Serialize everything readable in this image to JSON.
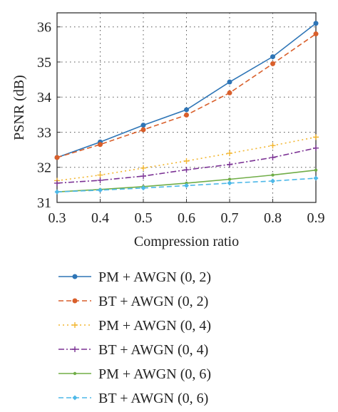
{
  "chart_data": {
    "type": "line",
    "xlabel": "Compression ratio",
    "ylabel": "PSNR (dB)",
    "xlim": [
      0.3,
      0.9
    ],
    "ylim": [
      31,
      36.4
    ],
    "xticks": [
      "0.3",
      "0.4",
      "0.5",
      "0.6",
      "0.7",
      "0.8",
      "0.9"
    ],
    "yticks": [
      "31",
      "32",
      "33",
      "34",
      "35",
      "36"
    ],
    "grid": true,
    "legend_position": "below",
    "x": [
      0.3,
      0.4,
      0.5,
      0.6,
      0.7,
      0.8,
      0.9
    ],
    "series": [
      {
        "name": "PM + AWGN (0, 2)",
        "values": [
          32.28,
          32.72,
          33.2,
          33.64,
          34.43,
          35.15,
          36.1
        ],
        "color": "#2e75b6",
        "dash": "solid",
        "marker": "circle"
      },
      {
        "name": "BT + AWGN (0, 2)",
        "values": [
          32.28,
          32.65,
          33.07,
          33.49,
          34.12,
          34.95,
          35.8
        ],
        "color": "#d95f2b",
        "dash": "dashed",
        "marker": "circle"
      },
      {
        "name": "PM + AWGN (0, 4)",
        "values": [
          31.62,
          31.78,
          31.98,
          32.18,
          32.4,
          32.62,
          32.86
        ],
        "color": "#f2b630",
        "dash": "dotted",
        "marker": "plus"
      },
      {
        "name": "BT + AWGN (0, 4)",
        "values": [
          31.55,
          31.63,
          31.75,
          31.93,
          32.08,
          32.28,
          32.55
        ],
        "color": "#7b3294",
        "dash": "dashdot",
        "marker": "plus"
      },
      {
        "name": "PM + AWGN (0, 6)",
        "values": [
          31.3,
          31.37,
          31.45,
          31.55,
          31.66,
          31.78,
          31.92
        ],
        "color": "#70ad47",
        "dash": "solid",
        "marker": "dot"
      },
      {
        "name": "BT + AWGN (0, 6)",
        "values": [
          31.3,
          31.35,
          31.41,
          31.48,
          31.55,
          31.61,
          31.69
        ],
        "color": "#4db8e8",
        "dash": "dashed",
        "marker": "diamond"
      }
    ]
  }
}
